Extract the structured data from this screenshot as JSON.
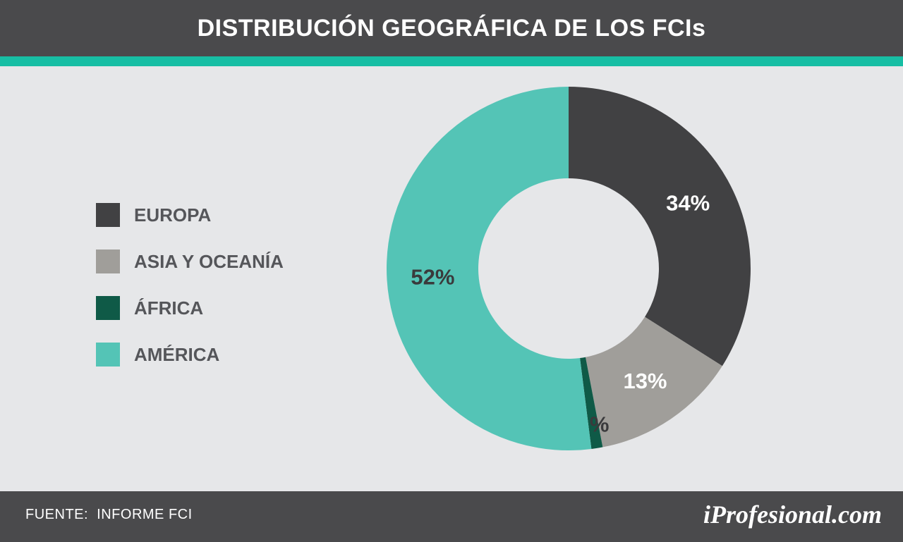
{
  "header": {
    "title": "DISTRIBUCIÓN GEOGRÁFICA DE LOS FCIs"
  },
  "footer": {
    "source": "FUENTE:  INFORME FCI",
    "brand": "iProfesional.com"
  },
  "colors": {
    "header_bg": "#4a4a4c",
    "accent": "#17bea4",
    "background": "#e6e7e9"
  },
  "chart_data": {
    "type": "pie",
    "variant": "donut",
    "legend": "left",
    "categories": [
      "EUROPA",
      "ASIA Y OCEANÍA",
      "ÁFRICA",
      "AMÉRICA"
    ],
    "values": [
      34,
      13,
      1,
      52
    ],
    "value_labels": [
      "34%",
      "13%",
      "1%",
      "52%"
    ],
    "colors": [
      "#414143",
      "#a09e9a",
      "#0f5a47",
      "#54c4b6"
    ],
    "label_colors": [
      "#ffffff",
      "#ffffff",
      "#3a3a3c",
      "#3a3a3c"
    ]
  }
}
